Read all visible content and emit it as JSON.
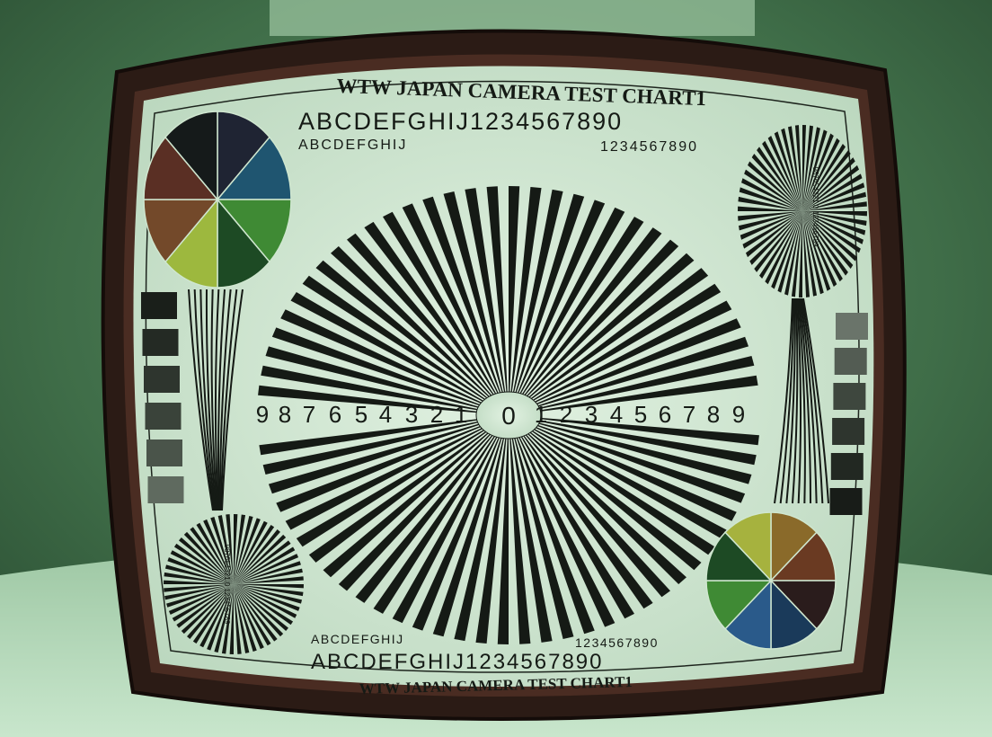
{
  "chart": {
    "top_title": "WTW JAPAN CAMERA TEST CHART1",
    "bottom_title": "WTW JAPAN CAMERA TEST CHART1",
    "top_large_line": "ABCDEFGHIJ1234567890",
    "top_small_letters": "ABCDEFGHIJ",
    "top_small_digits": "1234567890",
    "bottom_small_letters": "ABCDEFGHIJ",
    "bottom_small_digits": "1234567890",
    "bottom_large_line": "ABCDEFGHIJ1234567890",
    "center_scale": [
      "9",
      "8",
      "7",
      "6",
      "5",
      "4",
      "3",
      "2",
      "1",
      "0",
      "1",
      "2",
      "3",
      "4",
      "5",
      "6",
      "7",
      "8",
      "9"
    ],
    "corner_star_scale": "987654321 0 123456789"
  },
  "colors": {
    "background_cloth": "#3f6a48",
    "frame": "#2a1a14",
    "chart_paper": "#d6ead6",
    "ink": "#151a15",
    "pie_top_left": [
      "#1f2433",
      "#1f5570",
      "#3f8a34",
      "#1d4a24",
      "#9db83e",
      "#73492a",
      "#5a2f24",
      "#151a1a"
    ],
    "pie_bottom_right": [
      "#8a6a2a",
      "#6a3a22",
      "#2a1c1c",
      "#1a3a5a",
      "#2a5a8a",
      "#3f8a34",
      "#1d4a24",
      "#a6b23e"
    ],
    "grey_steps_left": [
      "#1a1f1a",
      "#242a24",
      "#2e352e",
      "#3a433a",
      "#4a544a",
      "#5f6a5f"
    ],
    "grey_steps_right": [
      "#6a746a",
      "#535c53",
      "#3e473e",
      "#2e352e",
      "#222822",
      "#181c18"
    ]
  }
}
